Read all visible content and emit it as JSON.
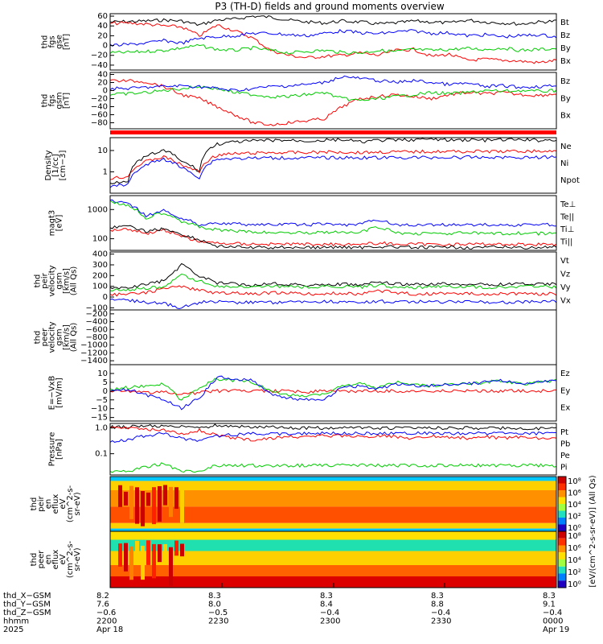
{
  "title": "P3 (TH-D) fields and ground moments overview",
  "colors": {
    "black": "#000000",
    "red": "#ff0000",
    "green": "#00cc00",
    "blue": "#0000ff"
  },
  "chart_data": [
    {
      "type": "line",
      "panel": "fgs-gse",
      "ylabel": [
        "thd",
        "fgs",
        "gse",
        "[nT]"
      ],
      "yticks": [
        "60",
        "40",
        "20",
        "0",
        "−20",
        "−40"
      ],
      "ylim": [
        -50,
        65
      ],
      "series": [
        {
          "name": "Bt",
          "color": "black",
          "values": [
            48,
            49,
            50,
            52,
            50,
            42,
            52,
            54,
            60,
            58,
            52,
            48,
            46,
            50,
            48,
            44,
            46,
            50,
            48,
            46,
            52,
            48,
            46,
            44,
            48,
            50
          ]
        },
        {
          "name": "Bz",
          "color": "red",
          "values": [
            45,
            46,
            44,
            40,
            38,
            20,
            42,
            30,
            15,
            -10,
            -20,
            -25,
            -22,
            -20,
            -15,
            -20,
            -10,
            -8,
            -22,
            -18,
            -30,
            -28,
            -30,
            -32,
            -35,
            -30
          ]
        },
        {
          "name": "By",
          "color": "green",
          "values": [
            -15,
            -14,
            -12,
            -10,
            -5,
            0,
            -8,
            -10,
            -5,
            -10,
            -15,
            -12,
            -10,
            -14,
            -15,
            -10,
            -12,
            -8,
            -10,
            -8,
            -6,
            -8,
            -5,
            -10,
            -8,
            -6
          ]
        },
        {
          "name": "Bx",
          "color": "blue",
          "values": [
            0,
            2,
            5,
            10,
            5,
            15,
            18,
            20,
            25,
            25,
            22,
            20,
            25,
            30,
            26,
            24,
            28,
            30,
            25,
            26,
            20,
            22,
            18,
            20,
            22,
            18
          ]
        }
      ]
    },
    {
      "type": "line",
      "panel": "fgs-gsm",
      "ylabel": [
        "thd",
        "fgs",
        "gsm",
        "[nT]"
      ],
      "yticks": [
        "40",
        "20",
        "0",
        "−20",
        "−40",
        "−60",
        "−80"
      ],
      "ylim": [
        -95,
        45
      ],
      "series": [
        {
          "name": "Bz",
          "color": "red",
          "values": [
            25,
            24,
            22,
            10,
            -10,
            -20,
            -40,
            -60,
            -80,
            -85,
            -80,
            -75,
            -70,
            -40,
            -20,
            -15,
            -10,
            -15,
            -20,
            -10,
            -5,
            -8,
            -5,
            -10,
            -12,
            -8
          ]
        },
        {
          "name": "By",
          "color": "green",
          "values": [
            -10,
            -8,
            -5,
            0,
            5,
            10,
            5,
            -5,
            -10,
            -15,
            -15,
            -10,
            -5,
            -20,
            -25,
            -20,
            -15,
            -10,
            -5,
            -8,
            -5,
            0,
            -2,
            0,
            -2,
            0
          ]
        },
        {
          "name": "Bx",
          "color": "blue",
          "values": [
            5,
            5,
            8,
            10,
            12,
            10,
            5,
            0,
            5,
            10,
            12,
            15,
            20,
            35,
            30,
            25,
            20,
            25,
            20,
            15,
            18,
            10,
            12,
            8,
            10,
            12
          ]
        }
      ]
    },
    {
      "type": "line",
      "panel": "density",
      "log": true,
      "ylabel": [
        "Density",
        "[1/cc]",
        "[cm−3]"
      ],
      "yticks": [
        "10",
        "1"
      ],
      "ylim": [
        0.1,
        40
      ],
      "series": [
        {
          "name": "Ne",
          "color": "red",
          "values": [
            0.5,
            0.6,
            3,
            5,
            2,
            1,
            6,
            7,
            7.5,
            8,
            8,
            8,
            8.5,
            8.5,
            8,
            8.5,
            8.5,
            8.8,
            9,
            9,
            9,
            9,
            9,
            9.2,
            9.2,
            9.2
          ]
        },
        {
          "name": "Ni",
          "color": "black",
          "values": [
            0.3,
            0.4,
            5,
            10,
            3,
            1,
            20,
            25,
            28,
            30,
            30,
            28,
            30,
            32,
            25,
            30,
            30,
            32,
            35,
            30,
            32,
            30,
            32,
            32,
            30,
            32
          ]
        },
        {
          "name": "Npot",
          "color": "blue",
          "values": [
            0.2,
            0.25,
            2,
            4,
            1.5,
            0.5,
            4,
            4.2,
            4.4,
            4.5,
            4.5,
            4.5,
            4.6,
            4.6,
            4.6,
            4.6,
            4.6,
            4.7,
            4.7,
            4.7,
            4.8,
            4.8,
            4.8,
            4.8,
            4.8,
            4.8
          ]
        }
      ]
    },
    {
      "type": "line",
      "panel": "temperature",
      "log": true,
      "ylabel": [
        "magt3",
        "[eV]"
      ],
      "yticks": [
        "1000",
        "100"
      ],
      "ylim": [
        40,
        3000
      ],
      "series": [
        {
          "name": "Te⊥",
          "color": "red",
          "values": [
            200,
            220,
            150,
            200,
            120,
            80,
            70,
            68,
            66,
            65,
            66,
            65,
            64,
            66,
            65,
            70,
            66,
            65,
            64,
            65,
            64,
            66,
            65,
            64,
            65,
            64
          ]
        },
        {
          "name": "Te||",
          "color": "black",
          "values": [
            250,
            260,
            180,
            220,
            140,
            90,
            55,
            52,
            50,
            50,
            52,
            50,
            50,
            52,
            50,
            55,
            52,
            50,
            50,
            52,
            50,
            50,
            52,
            50,
            50,
            52
          ]
        },
        {
          "name": "Ti⊥",
          "color": "blue",
          "values": [
            2000,
            1500,
            600,
            900,
            500,
            300,
            350,
            320,
            310,
            300,
            310,
            300,
            320,
            300,
            310,
            450,
            300,
            290,
            300,
            300,
            310,
            300,
            290,
            300,
            310,
            300
          ]
        },
        {
          "name": "Ti||",
          "color": "green",
          "values": [
            1800,
            1400,
            500,
            800,
            400,
            250,
            200,
            180,
            170,
            160,
            165,
            160,
            170,
            160,
            165,
            250,
            160,
            150,
            155,
            150,
            160,
            150,
            150,
            155,
            150,
            150
          ]
        }
      ]
    },
    {
      "type": "line",
      "panel": "peir-velocity",
      "ylabel": [
        "thd",
        "peir",
        "velocity",
        "gsm",
        "[km/s]",
        "(All Qs)"
      ],
      "yticks": [
        "400",
        "300",
        "200",
        "100",
        "0",
        "−100"
      ],
      "ylim": [
        -120,
        420
      ],
      "series": [
        {
          "name": "Vt",
          "color": "black",
          "values": [
            80,
            90,
            120,
            150,
            300,
            200,
            130,
            120,
            110,
            130,
            120,
            110,
            115,
            120,
            110,
            140,
            120,
            115,
            120,
            125,
            120,
            115,
            120,
            125,
            120,
            120
          ]
        },
        {
          "name": "Vz",
          "color": "red",
          "values": [
            20,
            30,
            40,
            80,
            100,
            60,
            40,
            35,
            30,
            40,
            35,
            30,
            30,
            35,
            30,
            60,
            40,
            30,
            30,
            35,
            30,
            30,
            35,
            30,
            30,
            30
          ]
        },
        {
          "name": "Vy",
          "color": "green",
          "values": [
            60,
            70,
            80,
            100,
            200,
            150,
            100,
            95,
            90,
            100,
            95,
            90,
            95,
            100,
            90,
            110,
            95,
            90,
            95,
            100,
            95,
            90,
            95,
            100,
            95,
            95
          ]
        },
        {
          "name": "Vx",
          "color": "blue",
          "values": [
            -20,
            -30,
            -50,
            -60,
            -100,
            -50,
            -40,
            -50,
            -45,
            -50,
            -45,
            -40,
            -40,
            -45,
            -50,
            -40,
            -45,
            -40,
            -50,
            -45,
            -40,
            -45,
            -50,
            -45,
            -40,
            -45
          ]
        }
      ]
    },
    {
      "type": "line",
      "panel": "peer-velocity",
      "ylabel": [
        "thd",
        "peer",
        "velocity",
        "gsm",
        "[km/s]",
        "(All Qs)"
      ],
      "yticks": [
        "−200",
        "−400",
        "−600",
        "−800",
        "−1000",
        "−1200",
        "−1400"
      ],
      "ylim": [
        -1500,
        -100
      ],
      "series": [
        {
          "name": "Vt",
          "color": "black",
          "values": []
        },
        {
          "name": "Vz",
          "color": "red",
          "values": []
        },
        {
          "name": "Vy",
          "color": "green",
          "values": []
        },
        {
          "name": "Vx",
          "color": "blue",
          "values": []
        }
      ]
    },
    {
      "type": "line",
      "panel": "efield",
      "ylabel": [
        "E=−VxB",
        "[mV/m]"
      ],
      "yticks": [
        "10",
        "5",
        "0",
        "−5",
        "−10",
        "−15"
      ],
      "ylim": [
        -17,
        15
      ],
      "series": [
        {
          "name": "Ez",
          "color": "red",
          "values": [
            0,
            0,
            -1,
            0,
            -2,
            -1,
            0,
            0,
            0,
            0,
            0,
            -0.5,
            0,
            0,
            0,
            0,
            0,
            0,
            0,
            0,
            0,
            0,
            0,
            0,
            0,
            0
          ]
        },
        {
          "name": "Ey",
          "color": "green",
          "values": [
            1,
            2,
            3,
            4,
            -5,
            2,
            7,
            6,
            5,
            0,
            -2,
            -3,
            -2,
            3,
            4,
            2,
            5,
            4,
            3,
            4,
            4,
            5,
            6,
            4,
            5,
            6
          ]
        },
        {
          "name": "Ex",
          "color": "blue",
          "values": [
            0,
            1,
            -2,
            -5,
            -10,
            -4,
            8,
            7,
            6,
            -2,
            -4,
            -5,
            -5,
            2,
            3,
            1,
            4,
            3,
            3,
            4,
            4,
            5,
            6,
            4,
            5,
            6
          ]
        }
      ]
    },
    {
      "type": "line",
      "panel": "pressure",
      "log": true,
      "ylabel": [
        "Pressure",
        "[nPa]"
      ],
      "yticks": [
        "1.0",
        "0.1"
      ],
      "ylim": [
        0.015,
        1.5
      ],
      "series": [
        {
          "name": "Pt",
          "color": "black",
          "values": [
            1.1,
            1.1,
            1.2,
            1.15,
            1.1,
            1.0,
            1.25,
            1.2,
            1.1,
            1.1,
            1.0,
            1.0,
            1.0,
            1.05,
            1.0,
            1.0,
            1.0,
            1.0,
            1.0,
            1.0,
            1.0,
            0.95,
            1.0,
            1.0,
            0.95,
            1.0
          ]
        },
        {
          "name": "Pb",
          "color": "red",
          "values": [
            1.0,
            1.0,
            0.9,
            0.8,
            0.6,
            0.8,
            0.5,
            0.4,
            0.35,
            0.4,
            0.45,
            0.45,
            0.5,
            0.5,
            0.45,
            0.5,
            0.45,
            0.4,
            0.5,
            0.45,
            0.4,
            0.45,
            0.4,
            0.45,
            0.4,
            0.4
          ]
        },
        {
          "name": "Pe",
          "color": "green",
          "values": [
            0.02,
            0.02,
            0.03,
            0.04,
            0.02,
            0.02,
            0.035,
            0.035,
            0.035,
            0.035,
            0.035,
            0.035,
            0.035,
            0.035,
            0.035,
            0.035,
            0.035,
            0.035,
            0.035,
            0.035,
            0.035,
            0.035,
            0.035,
            0.035,
            0.035,
            0.035
          ]
        },
        {
          "name": "Pi",
          "color": "blue",
          "values": [
            0.3,
            0.35,
            0.5,
            0.6,
            0.4,
            0.3,
            0.5,
            0.55,
            0.6,
            0.6,
            0.6,
            0.6,
            0.62,
            0.62,
            0.6,
            0.62,
            0.62,
            0.62,
            0.62,
            0.62,
            0.62,
            0.62,
            0.62,
            0.62,
            0.62,
            0.62
          ]
        }
      ]
    },
    {
      "type": "heatmap",
      "panel": "peir-spectrogram",
      "ylabel": [
        "thd",
        "peir",
        "en",
        "eflux",
        "eV",
        "(cm^2-s-",
        "sr-eV)"
      ],
      "yticks": [
        "10000",
        "1000",
        "100",
        "10"
      ],
      "cbar_label": "[eV/(cm^2-s-sr-eV)] (All Qs)",
      "cbar_ticks": [
        "10⁸",
        "10⁶",
        "10⁴",
        "10²",
        "10⁰"
      ]
    },
    {
      "type": "heatmap",
      "panel": "peer-spectrogram",
      "ylabel": [
        "thd",
        "peer",
        "en",
        "eflux",
        "eV",
        "(cm^2-s-",
        "sr-eV)"
      ],
      "yticks": [
        "10000",
        "1000",
        "100",
        "10"
      ],
      "cbar_label": "[eV/(cm^2-s-sr-eV)]",
      "cbar_ticks": [
        "10⁸",
        "10⁶",
        "10⁴",
        "10²",
        "10⁰"
      ]
    }
  ],
  "xaxis": {
    "rows": [
      {
        "label": "thd_X−GSM",
        "values": [
          "8.2",
          "8.3",
          "8.3",
          "8.3",
          "8.3"
        ]
      },
      {
        "label": "thd_Y−GSM",
        "values": [
          "7.6",
          "8.0",
          "8.4",
          "8.8",
          "9.1"
        ]
      },
      {
        "label": "thd_Z−GSM",
        "values": [
          "−0.6",
          "−0.5",
          "−0.4",
          "−0.4",
          "−0.4"
        ]
      },
      {
        "label": "hhmm",
        "values": [
          "2200",
          "2230",
          "2300",
          "2330",
          "0000"
        ]
      },
      {
        "label": "2025",
        "values": [
          "Apr 18",
          "",
          "",
          "",
          "Apr 19"
        ]
      }
    ]
  }
}
